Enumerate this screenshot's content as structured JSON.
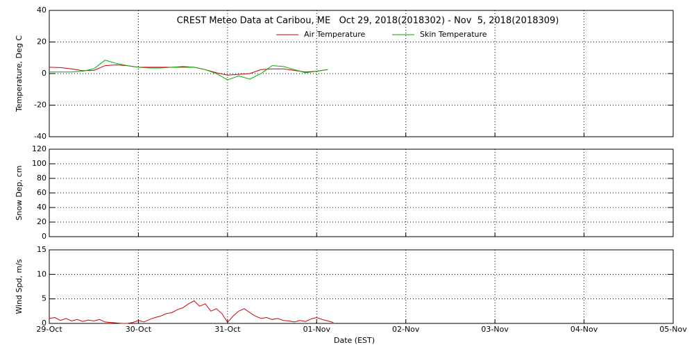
{
  "chart_data": [
    {
      "type": "line",
      "title": "CREST Meteo Data at Caribou, ME   Oct 29, 2018(2018302) - Nov  5, 2018(2018309)",
      "ylabel": "Temperature, Deg C",
      "x": [
        0,
        0.125,
        0.25,
        0.375,
        0.5,
        0.625,
        0.75,
        0.875,
        1,
        1.125,
        1.25,
        1.375,
        1.5,
        1.625,
        1.75,
        1.875,
        2,
        2.125,
        2.25,
        2.375,
        2.5,
        2.625,
        2.75,
        2.875,
        3,
        3.125
      ],
      "series": [
        {
          "name": "Air Temperature",
          "color": "#cc0000",
          "values": [
            4,
            3.8,
            3,
            1.8,
            2,
            5,
            5.5,
            5,
            4,
            4,
            4,
            4,
            4,
            4,
            2.5,
            0.5,
            -1,
            -0.5,
            0,
            2.5,
            3,
            3,
            2,
            1,
            1.5,
            2.5
          ]
        },
        {
          "name": "Skin Temperature",
          "color": "#00aa00",
          "values": [
            1,
            1,
            1,
            1.5,
            3,
            8.5,
            6.5,
            5,
            4,
            3.5,
            3.5,
            4,
            4.5,
            4,
            2.5,
            0,
            -4,
            -1.5,
            -3.5,
            0,
            5,
            4.5,
            2.5,
            0.5,
            1.5,
            2.5
          ]
        }
      ],
      "xlim": [
        0,
        7
      ],
      "xticks": [
        0,
        1,
        2,
        3,
        4,
        5,
        6,
        7
      ],
      "ylim": [
        -40,
        40
      ],
      "yticks": [
        -40,
        -20,
        0,
        20,
        40
      ],
      "grid": true,
      "legend": "top"
    },
    {
      "type": "line",
      "ylabel": "Snow Dep, cm",
      "x": [],
      "series": [],
      "xlim": [
        0,
        7
      ],
      "xticks": [
        0,
        1,
        2,
        3,
        4,
        5,
        6,
        7
      ],
      "ylim": [
        0,
        120
      ],
      "yticks": [
        0,
        20,
        40,
        60,
        80,
        100,
        120
      ],
      "grid": true
    },
    {
      "type": "line",
      "ylabel": "Wind Spd, m/s",
      "xlabel": "Date (EST)",
      "x": [
        0,
        0.0625,
        0.125,
        0.1875,
        0.25,
        0.3125,
        0.375,
        0.4375,
        0.5,
        0.5625,
        0.625,
        0.6875,
        0.75,
        0.8125,
        0.875,
        0.9375,
        1,
        1.0625,
        1.125,
        1.1875,
        1.25,
        1.3125,
        1.375,
        1.4375,
        1.5,
        1.5625,
        1.625,
        1.6875,
        1.75,
        1.8125,
        1.875,
        1.9375,
        2,
        2.0625,
        2.125,
        2.1875,
        2.25,
        2.3125,
        2.375,
        2.4375,
        2.5,
        2.5625,
        2.625,
        2.6875,
        2.75,
        2.8125,
        2.875,
        2.9375,
        3,
        3.0625,
        3.125,
        3.1875
      ],
      "series": [
        {
          "name": "Wind Speed",
          "color": "#cc0000",
          "values": [
            1.0,
            1.2,
            0.6,
            1.0,
            0.5,
            0.8,
            0.4,
            0.7,
            0.5,
            0.8,
            0.3,
            0.2,
            0.1,
            0,
            0,
            0.2,
            0.6,
            0.3,
            0.8,
            1.2,
            1.5,
            2.0,
            2.2,
            2.8,
            3.2,
            4.0,
            4.6,
            3.5,
            4.0,
            2.5,
            3.0,
            2.0,
            0.2,
            1.5,
            2.5,
            3.0,
            2.2,
            1.5,
            1.0,
            1.2,
            0.8,
            1.0,
            0.6,
            0.5,
            0.3,
            0.6,
            0.4,
            0.9,
            1.2,
            0.8,
            0.5,
            0.2
          ]
        }
      ],
      "xlim": [
        0,
        7
      ],
      "xticks": [
        {
          "value": 0,
          "label": "29-Oct"
        },
        {
          "value": 1,
          "label": "30-Oct"
        },
        {
          "value": 2,
          "label": "31-Oct"
        },
        {
          "value": 3,
          "label": "01-Nov"
        },
        {
          "value": 4,
          "label": "02-Nov"
        },
        {
          "value": 5,
          "label": "03-Nov"
        },
        {
          "value": 6,
          "label": "04-Nov"
        },
        {
          "value": 7,
          "label": "05-Nov"
        }
      ],
      "ylim": [
        0,
        15
      ],
      "yticks": [
        0,
        5,
        10,
        15
      ],
      "grid": true
    }
  ]
}
